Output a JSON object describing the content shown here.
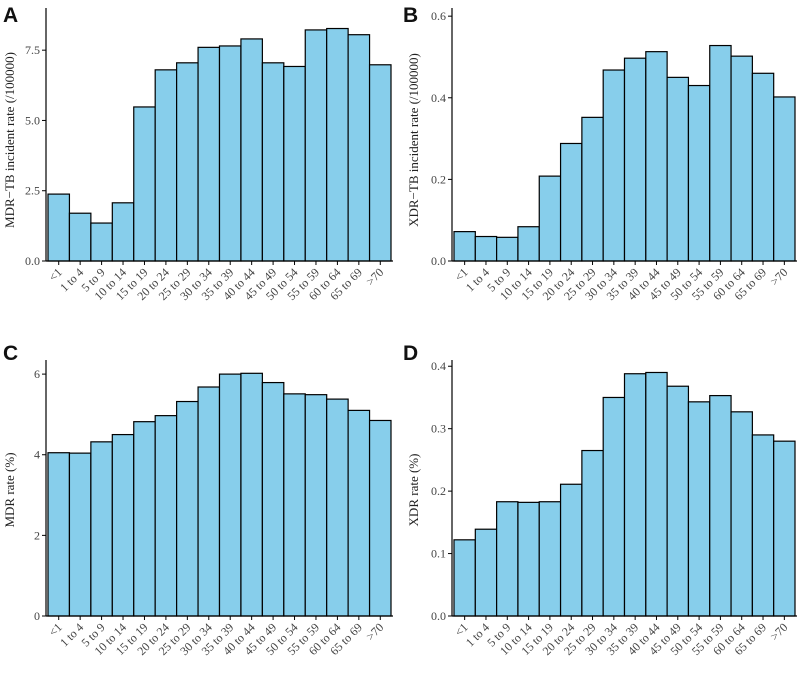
{
  "chart_data": [
    {
      "type": "bar",
      "panel": "A",
      "ylabel": "MDR−TB incident rate (/100000)",
      "categories": [
        "<1",
        "1 to 4",
        "5 to 9",
        "10 to 14",
        "15 to 19",
        "20 to 24",
        "25 to 29",
        "30 to 34",
        "35 to 39",
        "40 to 44",
        "45 to 49",
        "50 to 54",
        "55 to 59",
        "60 to 64",
        "65 to 69",
        ">70"
      ],
      "values": [
        2.38,
        1.7,
        1.35,
        2.07,
        5.48,
        6.8,
        7.05,
        7.6,
        7.65,
        7.9,
        7.05,
        6.92,
        8.22,
        8.27,
        8.05,
        6.98
      ],
      "ylim": [
        0,
        9.0
      ],
      "yticks": [
        0.0,
        2.5,
        5.0,
        7.5
      ],
      "ytick_labels": [
        "0.0",
        "2.5",
        "5.0",
        "7.5"
      ],
      "bar_color": "#87ceeb"
    },
    {
      "type": "bar",
      "panel": "B",
      "ylabel": "XDR−TB incident rate (/100000)",
      "categories": [
        "<1",
        "1 to 4",
        "5 to 9",
        "10 to 14",
        "15 to 19",
        "20 to 24",
        "25 to 29",
        "30 to 34",
        "35 to 39",
        "40 to 44",
        "45 to 49",
        "50 to 54",
        "55 to 59",
        "60 to 64",
        "65 to 69",
        ">70"
      ],
      "values": [
        0.072,
        0.06,
        0.058,
        0.084,
        0.208,
        0.288,
        0.352,
        0.468,
        0.497,
        0.513,
        0.45,
        0.43,
        0.528,
        0.502,
        0.46,
        0.402
      ],
      "ylim": [
        0,
        0.62
      ],
      "yticks": [
        0.0,
        0.2,
        0.4,
        0.6
      ],
      "ytick_labels": [
        "0.0",
        "0.2",
        "0.4",
        "0.6"
      ],
      "bar_color": "#87ceeb"
    },
    {
      "type": "bar",
      "panel": "C",
      "ylabel": "MDR rate (%)",
      "categories": [
        "<1",
        "1 to 4",
        "5 to 9",
        "10 to 14",
        "15 to 19",
        "20 to 24",
        "25 to 29",
        "30 to 34",
        "35 to 39",
        "40 to 44",
        "45 to 49",
        "50 to 54",
        "55 to 59",
        "60 to 64",
        "65 to 69",
        ">70"
      ],
      "values": [
        4.05,
        4.04,
        4.32,
        4.5,
        4.82,
        4.97,
        5.32,
        5.68,
        6.0,
        6.02,
        5.79,
        5.51,
        5.49,
        5.38,
        5.1,
        4.85
      ],
      "ylim": [
        0,
        6.35
      ],
      "yticks": [
        0,
        2,
        4,
        6
      ],
      "ytick_labels": [
        "0",
        "2",
        "4",
        "6"
      ],
      "bar_color": "#87ceeb"
    },
    {
      "type": "bar",
      "panel": "D",
      "ylabel": "XDR rate (%)",
      "categories": [
        "<1",
        "1 to 4",
        "5 to 9",
        "10 to 14",
        "15 to 19",
        "20 to 24",
        "25 to 29",
        "30 to 34",
        "35 to 39",
        "40 to 44",
        "45 to 49",
        "50 to 54",
        "55 to 59",
        "60 to 64",
        "65 to 69",
        ">70"
      ],
      "values": [
        0.122,
        0.139,
        0.183,
        0.182,
        0.183,
        0.211,
        0.265,
        0.35,
        0.388,
        0.39,
        0.368,
        0.343,
        0.353,
        0.327,
        0.29,
        0.28
      ],
      "ylim": [
        0,
        0.41
      ],
      "yticks": [
        0.0,
        0.1,
        0.2,
        0.3,
        0.4
      ],
      "ytick_labels": [
        "0.0",
        "0.1",
        "0.2",
        "0.3",
        "0.4"
      ],
      "bar_color": "#87ceeb"
    }
  ]
}
